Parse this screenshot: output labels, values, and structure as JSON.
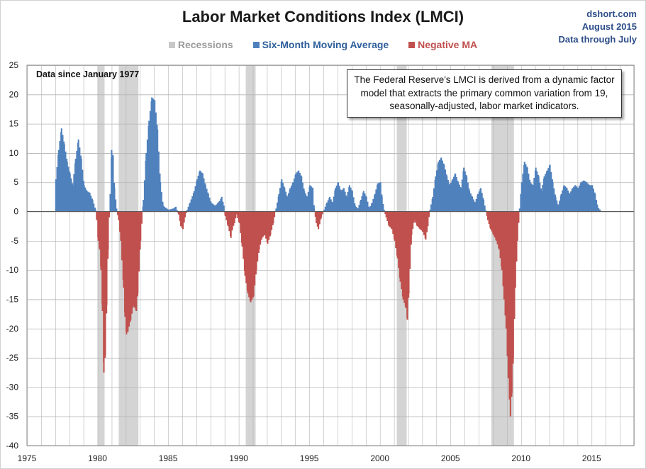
{
  "source": {
    "site": "dshort.com",
    "date": "August 2015",
    "coverage": "Data through July"
  },
  "colors": {
    "positive": "#4f81bd",
    "negative": "#c0504d",
    "recession": "#d4d4d4",
    "grid": "#b3b3b3",
    "title": "#1a1a1a",
    "source": "#2e4e8a"
  },
  "chart_data": {
    "type": "area",
    "title": "Labor Market Conditions Index  (LMCI)",
    "xlabel": "",
    "ylabel": "",
    "xlim": [
      1975,
      2018
    ],
    "ylim": [
      -40,
      25
    ],
    "grid": true,
    "legend_position": "top-center",
    "x_ticks": [
      "1975",
      "1980",
      "1985",
      "1990",
      "1995",
      "2000",
      "2005",
      "2010",
      "2015"
    ],
    "x_tick_values": [
      1975,
      1980,
      1985,
      1990,
      1995,
      2000,
      2005,
      2010,
      2015
    ],
    "y_ticks": [
      "25",
      "20",
      "15",
      "10",
      "5",
      "0",
      "-5",
      "-10",
      "-15",
      "-20",
      "-25",
      "-30",
      "-35",
      "-40"
    ],
    "y_tick_values": [
      25,
      20,
      15,
      10,
      5,
      0,
      -5,
      -10,
      -15,
      -20,
      -25,
      -30,
      -35,
      -40
    ],
    "legend": [
      {
        "label": "Recessions",
        "color": "#c8c8c8",
        "text_color": "#9a9a9a"
      },
      {
        "label": "Six-Month Moving Average",
        "color": "#4f81bd",
        "text_color": "#2e5f9a"
      },
      {
        "label": "Negative MA",
        "color": "#c0504d",
        "text_color": "#c0504d"
      }
    ],
    "annotations": {
      "data_since": "Data since January 1977",
      "note": "The Federal Reserve's LMCI is derived from a dynamic factor model that extracts the primary common variation from 19, seasonally-adjusted, labor market indicators."
    },
    "recessions": [
      [
        1980.0,
        1980.5
      ],
      [
        1981.5,
        1982.9
      ],
      [
        1990.5,
        1991.2
      ],
      [
        2001.2,
        2001.9
      ],
      [
        2007.9,
        2009.5
      ]
    ],
    "series": [
      {
        "name": "Six-Month Moving Average",
        "points": [
          [
            1977.0,
            5.5
          ],
          [
            1977.2,
            10.5
          ],
          [
            1977.4,
            14.2
          ],
          [
            1977.6,
            11.5
          ],
          [
            1977.8,
            8.5
          ],
          [
            1978.0,
            6.5
          ],
          [
            1978.2,
            4.5
          ],
          [
            1978.4,
            9.0
          ],
          [
            1978.6,
            12.3
          ],
          [
            1978.8,
            9.0
          ],
          [
            1979.0,
            4.5
          ],
          [
            1979.2,
            3.5
          ],
          [
            1979.4,
            3.2
          ],
          [
            1979.6,
            2.0
          ],
          [
            1979.8,
            0.4
          ],
          [
            1979.9,
            -1.5
          ],
          [
            1980.0,
            -5.0
          ],
          [
            1980.1,
            -6.5
          ],
          [
            1980.2,
            -10.0
          ],
          [
            1980.3,
            -17.0
          ],
          [
            1980.4,
            -27.5
          ],
          [
            1980.5,
            -24.5
          ],
          [
            1980.6,
            -16.0
          ],
          [
            1980.7,
            -6.5
          ],
          [
            1980.78,
            -1.0
          ],
          [
            1980.85,
            3.0
          ],
          [
            1980.95,
            10.5
          ],
          [
            1981.05,
            9.5
          ],
          [
            1981.15,
            4.0
          ],
          [
            1981.3,
            0.5
          ],
          [
            1981.45,
            -1.5
          ],
          [
            1981.6,
            -5.0
          ],
          [
            1981.8,
            -13.0
          ],
          [
            1981.9,
            -18.0
          ],
          [
            1982.0,
            -21.0
          ],
          [
            1982.1,
            -20.5
          ],
          [
            1982.3,
            -18.5
          ],
          [
            1982.5,
            -16.0
          ],
          [
            1982.7,
            -17.0
          ],
          [
            1982.8,
            -14.0
          ],
          [
            1983.0,
            -5.0
          ],
          [
            1983.2,
            2.0
          ],
          [
            1983.4,
            10.0
          ],
          [
            1983.6,
            15.5
          ],
          [
            1983.8,
            19.5
          ],
          [
            1984.0,
            19.0
          ],
          [
            1984.2,
            14.0
          ],
          [
            1984.4,
            5.0
          ],
          [
            1984.6,
            1.0
          ],
          [
            1984.8,
            0.6
          ],
          [
            1985.0,
            0.3
          ],
          [
            1985.3,
            0.5
          ],
          [
            1985.5,
            0.8
          ],
          [
            1985.7,
            -0.5
          ],
          [
            1985.85,
            -2.5
          ],
          [
            1986.0,
            -3.0
          ],
          [
            1986.15,
            -1.0
          ],
          [
            1986.3,
            0.3
          ],
          [
            1986.5,
            1.5
          ],
          [
            1986.8,
            3.5
          ],
          [
            1987.0,
            5.5
          ],
          [
            1987.2,
            7.0
          ],
          [
            1987.4,
            6.5
          ],
          [
            1987.6,
            4.5
          ],
          [
            1987.8,
            3.0
          ],
          [
            1988.0,
            1.5
          ],
          [
            1988.3,
            1.0
          ],
          [
            1988.6,
            1.8
          ],
          [
            1988.75,
            2.5
          ],
          [
            1988.9,
            1.0
          ],
          [
            1989.0,
            -0.8
          ],
          [
            1989.2,
            -2.5
          ],
          [
            1989.4,
            -4.5
          ],
          [
            1989.5,
            -3.0
          ],
          [
            1989.65,
            -2.0
          ],
          [
            1989.8,
            -0.5
          ],
          [
            1990.0,
            -2.0
          ],
          [
            1990.2,
            -6.0
          ],
          [
            1990.4,
            -11.0
          ],
          [
            1990.6,
            -14.0
          ],
          [
            1990.8,
            -15.5
          ],
          [
            1991.0,
            -14.5
          ],
          [
            1991.2,
            -10.0
          ],
          [
            1991.4,
            -6.5
          ],
          [
            1991.6,
            -4.5
          ],
          [
            1991.8,
            -4.0
          ],
          [
            1992.0,
            -5.5
          ],
          [
            1992.2,
            -4.0
          ],
          [
            1992.4,
            -2.0
          ],
          [
            1992.6,
            0.5
          ],
          [
            1992.8,
            3.0
          ],
          [
            1993.0,
            5.5
          ],
          [
            1993.2,
            4.0
          ],
          [
            1993.4,
            2.5
          ],
          [
            1993.6,
            4.0
          ],
          [
            1993.8,
            5.0
          ],
          [
            1994.0,
            6.5
          ],
          [
            1994.2,
            7.0
          ],
          [
            1994.4,
            6.0
          ],
          [
            1994.6,
            3.5
          ],
          [
            1994.8,
            2.5
          ],
          [
            1995.0,
            4.5
          ],
          [
            1995.2,
            4.0
          ],
          [
            1995.3,
            0.5
          ],
          [
            1995.45,
            -2.0
          ],
          [
            1995.6,
            -3.0
          ],
          [
            1995.8,
            -1.0
          ],
          [
            1996.0,
            0.3
          ],
          [
            1996.2,
            1.5
          ],
          [
            1996.4,
            2.5
          ],
          [
            1996.6,
            1.5
          ],
          [
            1996.8,
            4.0
          ],
          [
            1997.0,
            5.0
          ],
          [
            1997.2,
            3.5
          ],
          [
            1997.4,
            4.0
          ],
          [
            1997.6,
            2.5
          ],
          [
            1997.8,
            4.5
          ],
          [
            1998.0,
            3.5
          ],
          [
            1998.2,
            1.0
          ],
          [
            1998.4,
            0.5
          ],
          [
            1998.6,
            2.0
          ],
          [
            1998.8,
            3.5
          ],
          [
            1999.0,
            2.5
          ],
          [
            1999.2,
            0.5
          ],
          [
            1999.4,
            1.5
          ],
          [
            1999.6,
            3.0
          ],
          [
            1999.8,
            4.8
          ],
          [
            2000.0,
            5.0
          ],
          [
            2000.1,
            2.5
          ],
          [
            2000.25,
            0.3
          ],
          [
            2000.4,
            -1.0
          ],
          [
            2000.6,
            -2.5
          ],
          [
            2000.8,
            -3.0
          ],
          [
            2001.0,
            -5.0
          ],
          [
            2001.2,
            -8.0
          ],
          [
            2001.4,
            -12.0
          ],
          [
            2001.6,
            -15.0
          ],
          [
            2001.8,
            -16.5
          ],
          [
            2001.9,
            -18.5
          ],
          [
            2002.0,
            -14.0
          ],
          [
            2002.2,
            -4.0
          ],
          [
            2002.4,
            -1.5
          ],
          [
            2002.6,
            -2.5
          ],
          [
            2002.8,
            -3.0
          ],
          [
            2003.0,
            -3.5
          ],
          [
            2003.2,
            -4.8
          ],
          [
            2003.35,
            -2.5
          ],
          [
            2003.5,
            0.3
          ],
          [
            2003.7,
            2.5
          ],
          [
            2003.9,
            6.0
          ],
          [
            2004.1,
            8.5
          ],
          [
            2004.3,
            9.2
          ],
          [
            2004.5,
            8.0
          ],
          [
            2004.7,
            6.0
          ],
          [
            2004.9,
            4.5
          ],
          [
            2005.1,
            5.5
          ],
          [
            2005.3,
            6.5
          ],
          [
            2005.5,
            5.0
          ],
          [
            2005.7,
            4.0
          ],
          [
            2005.9,
            7.5
          ],
          [
            2006.1,
            6.0
          ],
          [
            2006.3,
            3.5
          ],
          [
            2006.5,
            2.5
          ],
          [
            2006.7,
            1.5
          ],
          [
            2006.9,
            3.0
          ],
          [
            2007.1,
            4.0
          ],
          [
            2007.3,
            2.0
          ],
          [
            2007.45,
            0.2
          ],
          [
            2007.6,
            -1.5
          ],
          [
            2007.8,
            -3.0
          ],
          [
            2008.0,
            -4.0
          ],
          [
            2008.2,
            -5.0
          ],
          [
            2008.4,
            -6.5
          ],
          [
            2008.6,
            -10.0
          ],
          [
            2008.75,
            -15.0
          ],
          [
            2008.9,
            -20.0
          ],
          [
            2009.05,
            -28.5
          ],
          [
            2009.2,
            -35.0
          ],
          [
            2009.3,
            -31.0
          ],
          [
            2009.4,
            -25.0
          ],
          [
            2009.55,
            -13.0
          ],
          [
            2009.7,
            -5.0
          ],
          [
            2009.85,
            0.5
          ],
          [
            2010.0,
            5.0
          ],
          [
            2010.2,
            8.5
          ],
          [
            2010.4,
            7.5
          ],
          [
            2010.6,
            5.0
          ],
          [
            2010.8,
            4.5
          ],
          [
            2011.0,
            7.5
          ],
          [
            2011.2,
            6.0
          ],
          [
            2011.4,
            3.5
          ],
          [
            2011.6,
            6.0
          ],
          [
            2011.8,
            7.0
          ],
          [
            2012.0,
            8.0
          ],
          [
            2012.2,
            5.0
          ],
          [
            2012.4,
            2.5
          ],
          [
            2012.6,
            1.0
          ],
          [
            2012.8,
            3.0
          ],
          [
            2013.0,
            4.5
          ],
          [
            2013.2,
            4.0
          ],
          [
            2013.4,
            3.0
          ],
          [
            2013.6,
            4.0
          ],
          [
            2013.8,
            4.5
          ],
          [
            2014.0,
            4.0
          ],
          [
            2014.2,
            5.0
          ],
          [
            2014.4,
            5.3
          ],
          [
            2014.6,
            5.0
          ],
          [
            2014.8,
            4.5
          ],
          [
            2015.0,
            4.5
          ],
          [
            2015.2,
            3.0
          ],
          [
            2015.35,
            1.2
          ],
          [
            2015.45,
            0.5
          ],
          [
            2015.55,
            0.3
          ]
        ]
      }
    ]
  }
}
